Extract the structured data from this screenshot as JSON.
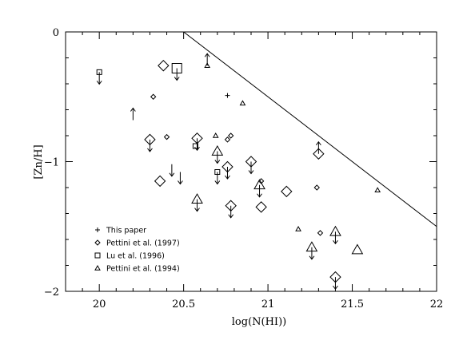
{
  "chart_data": {
    "type": "scatter",
    "xlabel": "log(N(HI))",
    "ylabel": "[Zn/H]",
    "xlim": [
      19.8,
      22.0
    ],
    "ylim": [
      -2.0,
      0.0
    ],
    "x_ticks": [
      20,
      20.5,
      21,
      21.5,
      22
    ],
    "x_tick_labels": [
      "20",
      "20.5",
      "21",
      "21.5",
      "22"
    ],
    "y_ticks": [
      0,
      -1,
      -2
    ],
    "y_tick_labels": [
      "0",
      "−1",
      "−2"
    ],
    "grid": false,
    "legend_position": "bottom-left",
    "reference_line": {
      "x": [
        20.5,
        22.0
      ],
      "y": [
        0.0,
        -1.5
      ]
    },
    "series": [
      {
        "name": "This paper",
        "marker": "plus",
        "points": [
          {
            "x": 20.76,
            "y": -0.49
          }
        ]
      },
      {
        "name": "Pettini et al. (1997)",
        "marker": "diamond",
        "points": [
          {
            "x": 20.38,
            "y": -0.26,
            "size": "large"
          },
          {
            "x": 20.32,
            "y": -0.5,
            "size": "small"
          },
          {
            "x": 20.3,
            "y": -0.83,
            "size": "large",
            "limit": "upper"
          },
          {
            "x": 20.4,
            "y": -0.81,
            "size": "small"
          },
          {
            "x": 20.58,
            "y": -0.82,
            "size": "large",
            "limit": "upper"
          },
          {
            "x": 20.36,
            "y": -1.15,
            "size": "large"
          },
          {
            "x": 20.76,
            "y": -0.83,
            "size": "small"
          },
          {
            "x": 20.78,
            "y": -0.8,
            "size": "small"
          },
          {
            "x": 20.76,
            "y": -1.04,
            "size": "large",
            "limit": "upper"
          },
          {
            "x": 20.78,
            "y": -1.34,
            "size": "large",
            "limit": "upper"
          },
          {
            "x": 20.9,
            "y": -1.0,
            "size": "large",
            "limit": "upper"
          },
          {
            "x": 20.96,
            "y": -1.15,
            "size": "small"
          },
          {
            "x": 20.96,
            "y": -1.35,
            "size": "large"
          },
          {
            "x": 21.11,
            "y": -1.23,
            "size": "large"
          },
          {
            "x": 21.29,
            "y": -1.2,
            "size": "small"
          },
          {
            "x": 21.3,
            "y": -0.94,
            "size": "large",
            "limit": "lower"
          },
          {
            "x": 21.31,
            "y": -1.55,
            "size": "small"
          },
          {
            "x": 21.4,
            "y": -1.89,
            "size": "large",
            "limit": "upper"
          }
        ]
      },
      {
        "name": "Lu et al. (1996)",
        "marker": "square",
        "points": [
          {
            "x": 20.0,
            "y": -0.31,
            "size": "small",
            "limit": "upper"
          },
          {
            "x": 20.46,
            "y": -0.28,
            "size": "large",
            "limit": "upper"
          },
          {
            "x": 20.57,
            "y": -0.88,
            "size": "small"
          },
          {
            "x": 20.7,
            "y": -1.08,
            "size": "small",
            "limit": "upper"
          }
        ]
      },
      {
        "name": "Pettini et al. (1994)",
        "marker": "triangle",
        "points": [
          {
            "x": 20.64,
            "y": -0.26,
            "size": "small",
            "limit": "lower"
          },
          {
            "x": 20.85,
            "y": -0.55,
            "size": "small"
          },
          {
            "x": 20.69,
            "y": -0.8,
            "size": "small"
          },
          {
            "x": 20.7,
            "y": -0.92,
            "size": "large",
            "limit": "upper"
          },
          {
            "x": 20.58,
            "y": -1.29,
            "size": "large",
            "limit": "upper"
          },
          {
            "x": 20.95,
            "y": -1.18,
            "size": "large",
            "limit": "upper"
          },
          {
            "x": 21.18,
            "y": -1.52,
            "size": "small"
          },
          {
            "x": 21.26,
            "y": -1.66,
            "size": "large",
            "limit": "upper"
          },
          {
            "x": 21.4,
            "y": -1.54,
            "size": "large",
            "limit": "upper"
          },
          {
            "x": 21.53,
            "y": -1.68,
            "size": "large"
          },
          {
            "x": 21.65,
            "y": -1.22,
            "size": "small"
          }
        ]
      },
      {
        "name": "",
        "marker": "none",
        "points": [
          {
            "x": 20.2,
            "y": -0.68,
            "limit": "lower"
          },
          {
            "x": 20.43,
            "y": -1.02,
            "limit": "upper"
          },
          {
            "x": 20.48,
            "y": -1.08,
            "limit": "upper"
          }
        ]
      }
    ]
  }
}
